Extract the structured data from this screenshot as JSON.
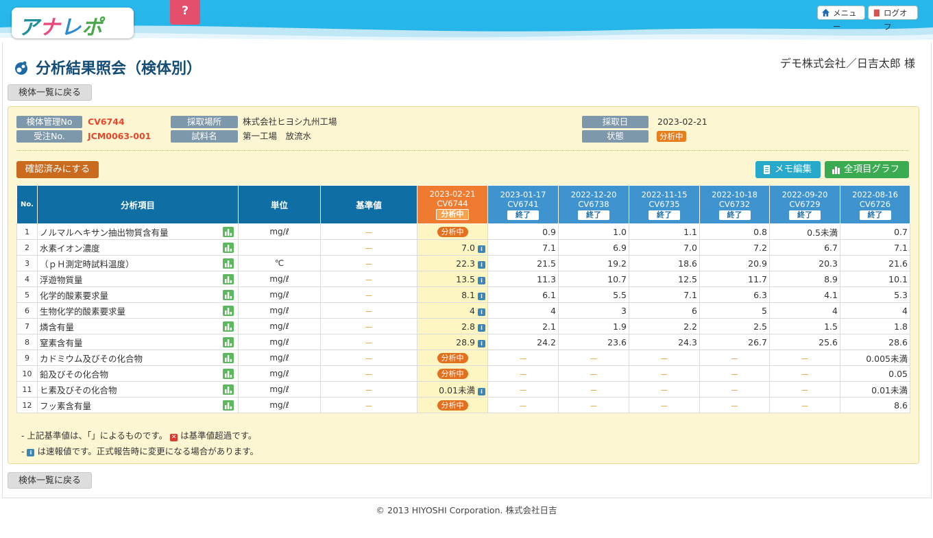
{
  "header": {
    "logo_text": "アナレポ",
    "help_label": "?",
    "menu_label": "メニュー",
    "logoff_label": "ログオフ"
  },
  "page": {
    "title": "分析結果照会（検体別）",
    "customer": "デモ株式会社／日吉太郎 様",
    "back_label": "検体一覧に戻る"
  },
  "sample": {
    "mgmt_no_label": "検体管理No",
    "mgmt_no": "CV6744",
    "order_no_label": "受注No.",
    "order_no": "JCM0063-001",
    "place_label": "採取場所",
    "place": "株式会社ヒヨシ九州工場",
    "sample_name_label": "試料名",
    "sample_name": "第一工場　放流水",
    "date_label": "採取日",
    "date": "2023-02-21",
    "status_label": "状態",
    "status": "分析中"
  },
  "actions": {
    "confirm_label": "確認済みにする",
    "memo_label": "メモ編集",
    "graph_label": "全項目グラフ"
  },
  "table": {
    "headers": {
      "no": "No.",
      "item": "分析項目",
      "unit": "単位",
      "std": "基準値"
    },
    "columns": [
      {
        "date": "2023-02-21",
        "id": "CV6744",
        "status": "分析中"
      },
      {
        "date": "2023-01-17",
        "id": "CV6741",
        "status": "終了"
      },
      {
        "date": "2022-12-20",
        "id": "CV6738",
        "status": "終了"
      },
      {
        "date": "2022-11-15",
        "id": "CV6735",
        "status": "終了"
      },
      {
        "date": "2022-10-18",
        "id": "CV6732",
        "status": "終了"
      },
      {
        "date": "2022-09-20",
        "id": "CV6729",
        "status": "終了"
      },
      {
        "date": "2022-08-16",
        "id": "CV6726",
        "status": "終了"
      }
    ],
    "rows": [
      {
        "no": "1",
        "name": "ノルマルヘキサン抽出物質含有量",
        "unit": "mg/ℓ",
        "std": "－",
        "cur": "分析中",
        "vals": [
          "0.9",
          "1.0",
          "1.1",
          "0.8",
          "0.5未満",
          "0.7"
        ]
      },
      {
        "no": "2",
        "name": "水素イオン濃度",
        "unit": "",
        "std": "－",
        "cur": "7.0",
        "vals": [
          "7.1",
          "6.9",
          "7.0",
          "7.2",
          "6.7",
          "7.1"
        ]
      },
      {
        "no": "3",
        "name": "（ｐＨ測定時試料温度）",
        "unit": "℃",
        "std": "－",
        "cur": "22.3",
        "vals": [
          "21.5",
          "19.2",
          "18.6",
          "20.9",
          "20.3",
          "21.6"
        ]
      },
      {
        "no": "4",
        "name": "浮遊物質量",
        "unit": "mg/ℓ",
        "std": "－",
        "cur": "13.5",
        "vals": [
          "11.3",
          "10.7",
          "12.5",
          "11.7",
          "8.9",
          "10.1"
        ]
      },
      {
        "no": "5",
        "name": "化学的酸素要求量",
        "unit": "mg/ℓ",
        "std": "－",
        "cur": "8.1",
        "vals": [
          "6.1",
          "5.5",
          "7.1",
          "6.3",
          "4.1",
          "5.3"
        ]
      },
      {
        "no": "6",
        "name": "生物化学的酸素要求量",
        "unit": "mg/ℓ",
        "std": "－",
        "cur": "4",
        "vals": [
          "4",
          "3",
          "6",
          "5",
          "4",
          "4"
        ]
      },
      {
        "no": "7",
        "name": "燐含有量",
        "unit": "mg/ℓ",
        "std": "－",
        "cur": "2.8",
        "vals": [
          "2.1",
          "1.9",
          "2.2",
          "2.5",
          "1.5",
          "1.8"
        ]
      },
      {
        "no": "8",
        "name": "窒素含有量",
        "unit": "mg/ℓ",
        "std": "－",
        "cur": "28.9",
        "vals": [
          "24.2",
          "23.6",
          "24.3",
          "26.7",
          "25.6",
          "28.6"
        ]
      },
      {
        "no": "9",
        "name": "カドミウム及びその化合物",
        "unit": "mg/ℓ",
        "std": "－",
        "cur": "分析中",
        "vals": [
          "－",
          "－",
          "－",
          "－",
          "－",
          "0.005未満"
        ]
      },
      {
        "no": "10",
        "name": "鉛及びその化合物",
        "unit": "mg/ℓ",
        "std": "－",
        "cur": "分析中",
        "vals": [
          "－",
          "－",
          "－",
          "－",
          "－",
          "0.05"
        ]
      },
      {
        "no": "11",
        "name": "ヒ素及びその化合物",
        "unit": "mg/ℓ",
        "std": "－",
        "cur": "0.01未満",
        "vals": [
          "－",
          "－",
          "－",
          "－",
          "－",
          "0.01未満"
        ]
      },
      {
        "no": "12",
        "name": "フッ素含有量",
        "unit": "mg/ℓ",
        "std": "－",
        "cur": "分析中",
        "vals": [
          "－",
          "－",
          "－",
          "－",
          "－",
          "8.6"
        ]
      }
    ]
  },
  "notes": {
    "note1_pre": "- 上記基準値は、「」によるものです。",
    "note1_post": "は基準値超過です。",
    "note2_pre": "- ",
    "note2_post": "は速報値です。正式報告時に変更になる場合があります。"
  },
  "footer": {
    "copyright": "© 2013 HIYOSHI Corporation. 株式会社日吉"
  },
  "colors": {
    "header_blue": "#29b8ea",
    "title_navy": "#134c74",
    "accent_orange": "#e3701e",
    "table_head": "#0f6fa5"
  }
}
